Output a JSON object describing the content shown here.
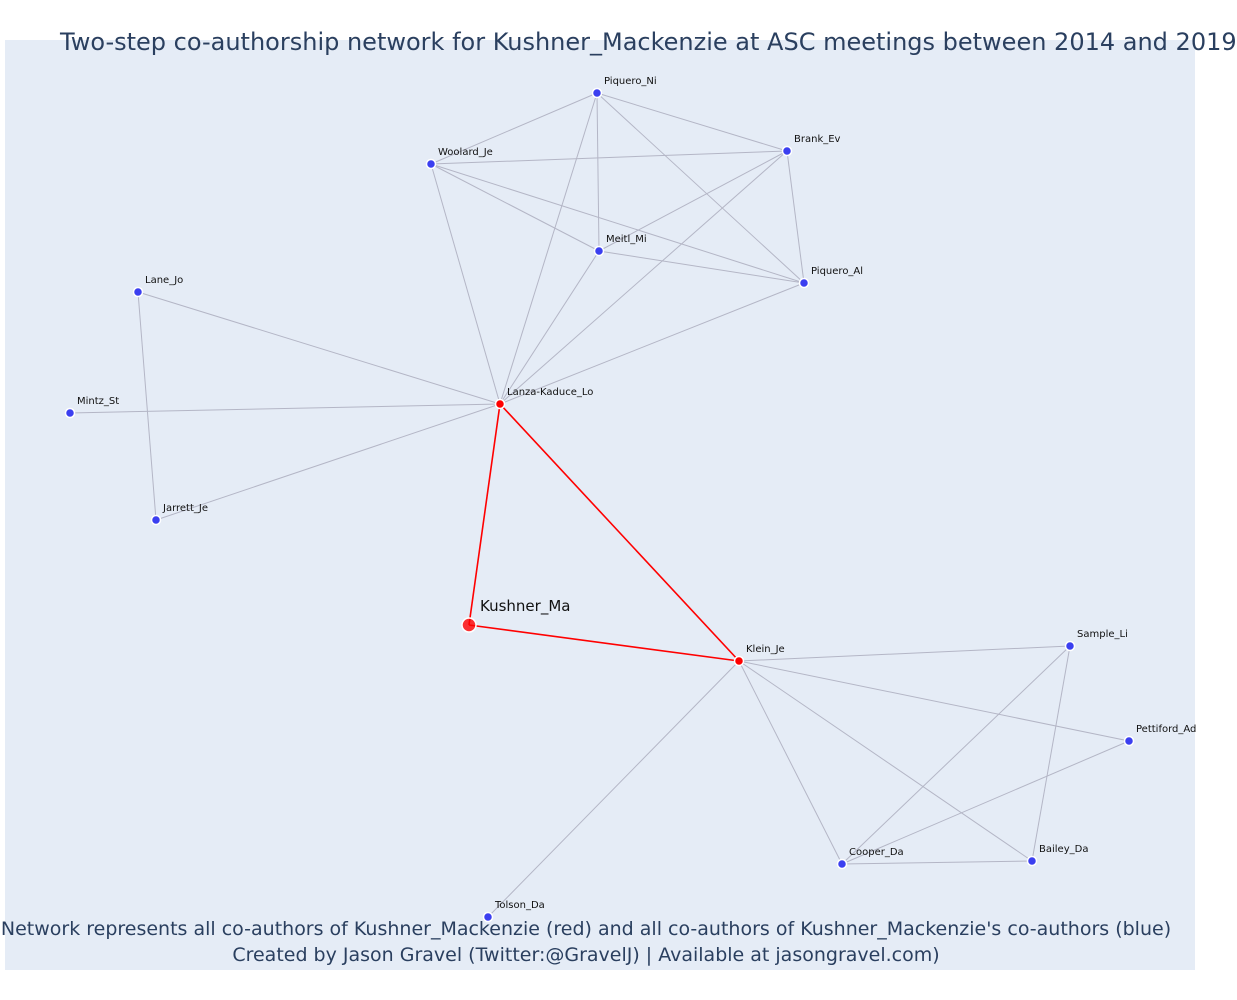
{
  "title": "Two-step co-authorship network for Kushner_Mackenzie at ASC meetings between 2014 and 2019",
  "caption_line1": "Network represents all co-authors of Kushner_Mackenzie (red) and all co-authors of Kushner_Mackenzie's co-authors (blue)",
  "caption_line2": "Created by Jason Gravel (Twitter:@GravelJ) | Available at jasongravel.com)",
  "colors": {
    "background": "#e5ecf6",
    "primary": "#ff0000",
    "secondary": "#3b3ff0",
    "edge": "#b4b6c6",
    "text": "#2a3f5f"
  },
  "nodes": [
    {
      "id": "Kushner_Ma",
      "group": "focal"
    },
    {
      "id": "Lanza-Kaduce_Lo",
      "group": "coauthor"
    },
    {
      "id": "Klein_Je",
      "group": "coauthor"
    },
    {
      "id": "Piquero_Ni",
      "group": "second"
    },
    {
      "id": "Woolard_Je",
      "group": "second"
    },
    {
      "id": "Brank_Ev",
      "group": "second"
    },
    {
      "id": "Meitl_Mi",
      "group": "second"
    },
    {
      "id": "Piquero_Al",
      "group": "second"
    },
    {
      "id": "Lane_Jo",
      "group": "second"
    },
    {
      "id": "Mintz_St",
      "group": "second"
    },
    {
      "id": "Jarrett_Je",
      "group": "second"
    },
    {
      "id": "Sample_Li",
      "group": "second"
    },
    {
      "id": "Pettiford_Ad",
      "group": "second"
    },
    {
      "id": "Cooper_Da",
      "group": "second"
    },
    {
      "id": "Bailey_Da",
      "group": "second"
    },
    {
      "id": "Tolson_Da",
      "group": "second"
    }
  ],
  "edges": [
    [
      "Kushner_Ma",
      "Lanza-Kaduce_Lo"
    ],
    [
      "Kushner_Ma",
      "Klein_Je"
    ],
    [
      "Lanza-Kaduce_Lo",
      "Klein_Je"
    ],
    [
      "Lanza-Kaduce_Lo",
      "Piquero_Ni"
    ],
    [
      "Lanza-Kaduce_Lo",
      "Woolard_Je"
    ],
    [
      "Lanza-Kaduce_Lo",
      "Brank_Ev"
    ],
    [
      "Lanza-Kaduce_Lo",
      "Meitl_Mi"
    ],
    [
      "Lanza-Kaduce_Lo",
      "Piquero_Al"
    ],
    [
      "Lanza-Kaduce_Lo",
      "Lane_Jo"
    ],
    [
      "Lanza-Kaduce_Lo",
      "Mintz_St"
    ],
    [
      "Lanza-Kaduce_Lo",
      "Jarrett_Je"
    ],
    [
      "Piquero_Ni",
      "Woolard_Je"
    ],
    [
      "Piquero_Ni",
      "Brank_Ev"
    ],
    [
      "Piquero_Ni",
      "Meitl_Mi"
    ],
    [
      "Piquero_Ni",
      "Piquero_Al"
    ],
    [
      "Woolard_Je",
      "Brank_Ev"
    ],
    [
      "Woolard_Je",
      "Meitl_Mi"
    ],
    [
      "Woolard_Je",
      "Piquero_Al"
    ],
    [
      "Brank_Ev",
      "Meitl_Mi"
    ],
    [
      "Brank_Ev",
      "Piquero_Al"
    ],
    [
      "Meitl_Mi",
      "Piquero_Al"
    ],
    [
      "Lane_Jo",
      "Jarrett_Je"
    ],
    [
      "Klein_Je",
      "Sample_Li"
    ],
    [
      "Klein_Je",
      "Pettiford_Ad"
    ],
    [
      "Klein_Je",
      "Cooper_Da"
    ],
    [
      "Klein_Je",
      "Bailey_Da"
    ],
    [
      "Klein_Je",
      "Tolson_Da"
    ],
    [
      "Sample_Li",
      "Cooper_Da"
    ],
    [
      "Sample_Li",
      "Bailey_Da"
    ],
    [
      "Pettiford_Ad",
      "Cooper_Da"
    ],
    [
      "Cooper_Da",
      "Bailey_Da"
    ]
  ]
}
